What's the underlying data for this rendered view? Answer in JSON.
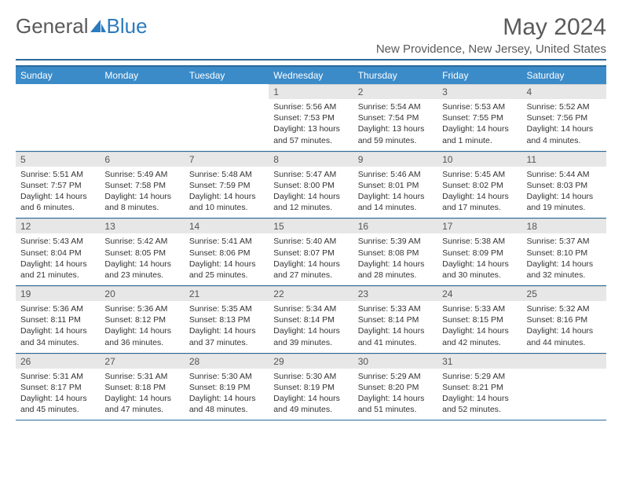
{
  "brand": {
    "part1": "General",
    "part2": "Blue",
    "logo_color": "#2b7bbf",
    "text_color": "#5a5a5a"
  },
  "title": "May 2024",
  "location": "New Providence, New Jersey, United States",
  "colors": {
    "header_bg": "#3b8bc9",
    "header_border": "#2b6a9a",
    "daynum_bg": "#e7e7e7",
    "body_text": "#333333"
  },
  "weekdays": [
    "Sunday",
    "Monday",
    "Tuesday",
    "Wednesday",
    "Thursday",
    "Friday",
    "Saturday"
  ],
  "first_day_index": 3,
  "days": [
    {
      "n": 1,
      "sunrise": "5:56 AM",
      "sunset": "7:53 PM",
      "daylight": "13 hours and 57 minutes."
    },
    {
      "n": 2,
      "sunrise": "5:54 AM",
      "sunset": "7:54 PM",
      "daylight": "13 hours and 59 minutes."
    },
    {
      "n": 3,
      "sunrise": "5:53 AM",
      "sunset": "7:55 PM",
      "daylight": "14 hours and 1 minute."
    },
    {
      "n": 4,
      "sunrise": "5:52 AM",
      "sunset": "7:56 PM",
      "daylight": "14 hours and 4 minutes."
    },
    {
      "n": 5,
      "sunrise": "5:51 AM",
      "sunset": "7:57 PM",
      "daylight": "14 hours and 6 minutes."
    },
    {
      "n": 6,
      "sunrise": "5:49 AM",
      "sunset": "7:58 PM",
      "daylight": "14 hours and 8 minutes."
    },
    {
      "n": 7,
      "sunrise": "5:48 AM",
      "sunset": "7:59 PM",
      "daylight": "14 hours and 10 minutes."
    },
    {
      "n": 8,
      "sunrise": "5:47 AM",
      "sunset": "8:00 PM",
      "daylight": "14 hours and 12 minutes."
    },
    {
      "n": 9,
      "sunrise": "5:46 AM",
      "sunset": "8:01 PM",
      "daylight": "14 hours and 14 minutes."
    },
    {
      "n": 10,
      "sunrise": "5:45 AM",
      "sunset": "8:02 PM",
      "daylight": "14 hours and 17 minutes."
    },
    {
      "n": 11,
      "sunrise": "5:44 AM",
      "sunset": "8:03 PM",
      "daylight": "14 hours and 19 minutes."
    },
    {
      "n": 12,
      "sunrise": "5:43 AM",
      "sunset": "8:04 PM",
      "daylight": "14 hours and 21 minutes."
    },
    {
      "n": 13,
      "sunrise": "5:42 AM",
      "sunset": "8:05 PM",
      "daylight": "14 hours and 23 minutes."
    },
    {
      "n": 14,
      "sunrise": "5:41 AM",
      "sunset": "8:06 PM",
      "daylight": "14 hours and 25 minutes."
    },
    {
      "n": 15,
      "sunrise": "5:40 AM",
      "sunset": "8:07 PM",
      "daylight": "14 hours and 27 minutes."
    },
    {
      "n": 16,
      "sunrise": "5:39 AM",
      "sunset": "8:08 PM",
      "daylight": "14 hours and 28 minutes."
    },
    {
      "n": 17,
      "sunrise": "5:38 AM",
      "sunset": "8:09 PM",
      "daylight": "14 hours and 30 minutes."
    },
    {
      "n": 18,
      "sunrise": "5:37 AM",
      "sunset": "8:10 PM",
      "daylight": "14 hours and 32 minutes."
    },
    {
      "n": 19,
      "sunrise": "5:36 AM",
      "sunset": "8:11 PM",
      "daylight": "14 hours and 34 minutes."
    },
    {
      "n": 20,
      "sunrise": "5:36 AM",
      "sunset": "8:12 PM",
      "daylight": "14 hours and 36 minutes."
    },
    {
      "n": 21,
      "sunrise": "5:35 AM",
      "sunset": "8:13 PM",
      "daylight": "14 hours and 37 minutes."
    },
    {
      "n": 22,
      "sunrise": "5:34 AM",
      "sunset": "8:14 PM",
      "daylight": "14 hours and 39 minutes."
    },
    {
      "n": 23,
      "sunrise": "5:33 AM",
      "sunset": "8:14 PM",
      "daylight": "14 hours and 41 minutes."
    },
    {
      "n": 24,
      "sunrise": "5:33 AM",
      "sunset": "8:15 PM",
      "daylight": "14 hours and 42 minutes."
    },
    {
      "n": 25,
      "sunrise": "5:32 AM",
      "sunset": "8:16 PM",
      "daylight": "14 hours and 44 minutes."
    },
    {
      "n": 26,
      "sunrise": "5:31 AM",
      "sunset": "8:17 PM",
      "daylight": "14 hours and 45 minutes."
    },
    {
      "n": 27,
      "sunrise": "5:31 AM",
      "sunset": "8:18 PM",
      "daylight": "14 hours and 47 minutes."
    },
    {
      "n": 28,
      "sunrise": "5:30 AM",
      "sunset": "8:19 PM",
      "daylight": "14 hours and 48 minutes."
    },
    {
      "n": 29,
      "sunrise": "5:30 AM",
      "sunset": "8:19 PM",
      "daylight": "14 hours and 49 minutes."
    },
    {
      "n": 30,
      "sunrise": "5:29 AM",
      "sunset": "8:20 PM",
      "daylight": "14 hours and 51 minutes."
    },
    {
      "n": 31,
      "sunrise": "5:29 AM",
      "sunset": "8:21 PM",
      "daylight": "14 hours and 52 minutes."
    }
  ],
  "labels": {
    "sunrise": "Sunrise:",
    "sunset": "Sunset:",
    "daylight": "Daylight:"
  }
}
